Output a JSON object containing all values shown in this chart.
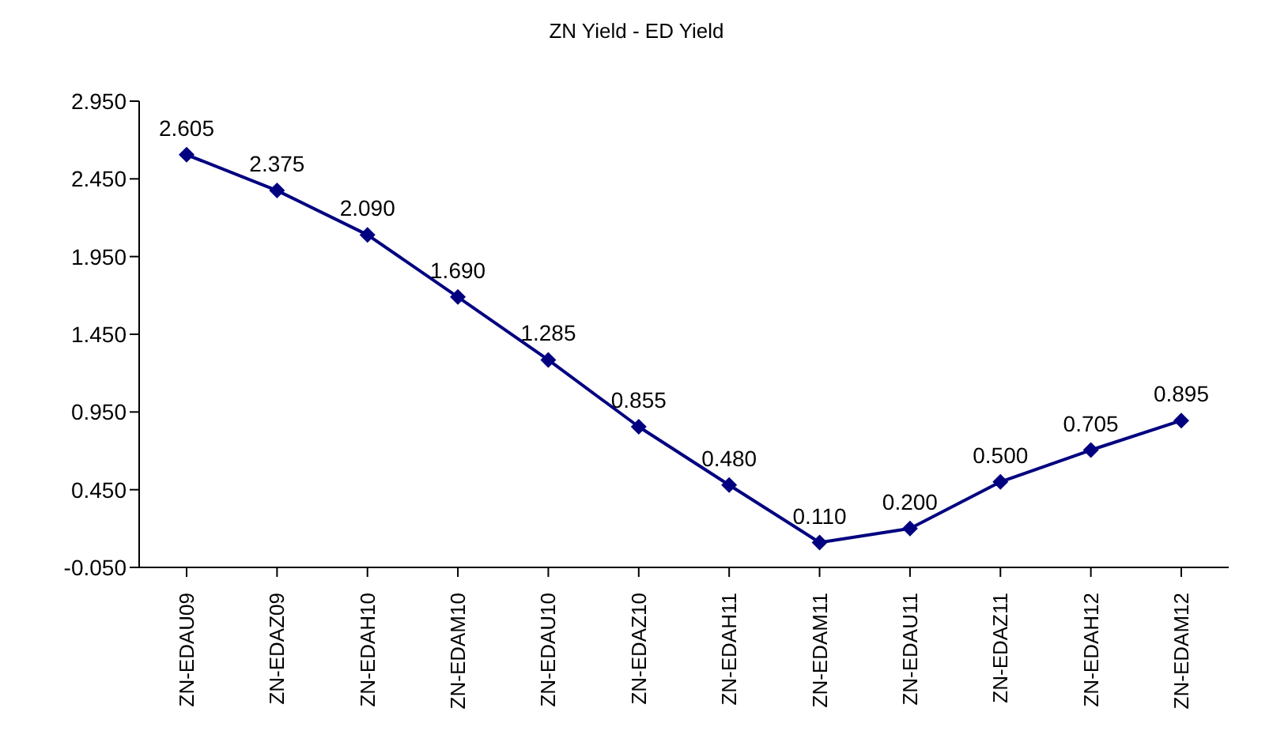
{
  "chart_data": {
    "type": "line",
    "title": "ZN Yield - ED Yield",
    "categories": [
      "ZN-EDAU09",
      "ZN-EDAZ09",
      "ZN-EDAH10",
      "ZN-EDAM10",
      "ZN-EDAU10",
      "ZN-EDAZ10",
      "ZN-EDAH11",
      "ZN-EDAM11",
      "ZN-EDAU11",
      "ZN-EDAZ11",
      "ZN-EDAH12",
      "ZN-EDAM12"
    ],
    "series": [
      {
        "color": "#000080",
        "values": [
          2.605,
          2.375,
          2.09,
          1.69,
          1.285,
          0.855,
          0.48,
          0.11,
          0.2,
          0.5,
          0.705,
          0.895
        ]
      }
    ],
    "value_labels": [
      "2.605",
      "2.375",
      "2.090",
      "1.690",
      "1.285",
      "0.855",
      "0.480",
      "0.110",
      "0.200",
      "0.500",
      "0.705",
      "0.895"
    ],
    "ylim": [
      -0.05,
      2.95
    ],
    "yticks": [
      {
        "value": -0.05,
        "label": "-0.050"
      },
      {
        "value": 0.45,
        "label": "0.450"
      },
      {
        "value": 0.95,
        "label": "0.950"
      },
      {
        "value": 1.45,
        "label": "1.450"
      },
      {
        "value": 1.95,
        "label": "1.950"
      },
      {
        "value": 2.45,
        "label": "2.450"
      },
      {
        "value": 2.95,
        "label": "2.950"
      }
    ],
    "grid": false,
    "legend": false,
    "marker": "diamond",
    "line_style": "solid"
  }
}
